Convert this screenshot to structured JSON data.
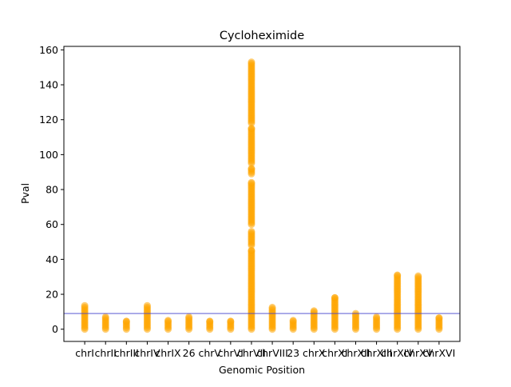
{
  "chart_data": {
    "type": "scatter",
    "title": "Cycloheximide",
    "xlabel": "Genomic Position",
    "ylabel": "Pval",
    "categories": [
      "chrI",
      "chrII",
      "chrIII",
      "chrIV",
      "chrIX",
      "26",
      "chrV",
      "chrVI",
      "chrVII",
      "chrVIII",
      "23",
      "chrX",
      "chrXI",
      "chrXII",
      "chrXIII",
      "chrXIV",
      "chrXV",
      "chrXVI"
    ],
    "category_max": [
      13.5,
      7,
      4.5,
      13.5,
      5,
      7,
      4.5,
      4.5,
      153,
      12.5,
      5,
      10.5,
      18,
      9,
      7,
      31,
      30.5,
      6.5
    ],
    "category_clusters": {
      "chrVII": [
        [
          0,
          45
        ],
        [
          48,
          56
        ],
        [
          60,
          84
        ],
        [
          89,
          92
        ],
        [
          95,
          115
        ],
        [
          118,
          153
        ]
      ]
    },
    "threshold": 9,
    "ylim": [
      -7,
      162
    ],
    "xlim": [
      -1,
      18
    ],
    "yticks": [
      0,
      20,
      40,
      60,
      80,
      100,
      120,
      140,
      160
    ],
    "grid": false,
    "colors": {
      "points": "#FFA500",
      "threshold": "#4040cc"
    }
  }
}
